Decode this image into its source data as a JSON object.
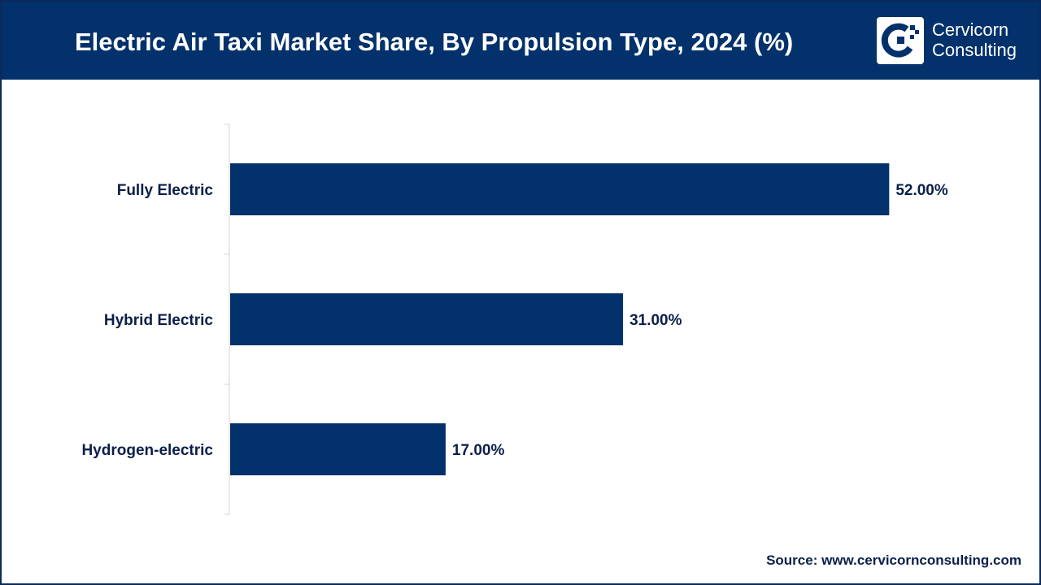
{
  "header": {
    "title": "Electric Air Taxi Market Share, By Propulsion Type, 2024 (%)",
    "logo_line1": "Cervicorn",
    "logo_line2": "Consulting",
    "logo_icon": "cervicorn-logo-icon"
  },
  "footer": {
    "source": "Source: www.cervicornconsulting.com"
  },
  "colors": {
    "header_bg": "#03316b",
    "bar": "#03316b",
    "label_text": "#0b1f4a",
    "axis": "#d0d0d0"
  },
  "chart_data": {
    "type": "bar",
    "orientation": "horizontal",
    "title": "Electric Air Taxi Market Share, By Propulsion Type, 2024 (%)",
    "categories": [
      "Fully Electric",
      "Hybrid Electric",
      "Hydrogen-electric"
    ],
    "values": [
      52,
      31,
      17
    ],
    "value_labels": [
      "52.00%",
      "31.00%",
      "17.00%"
    ],
    "xlim": [
      0,
      60
    ],
    "grid": false,
    "legend": "none"
  }
}
